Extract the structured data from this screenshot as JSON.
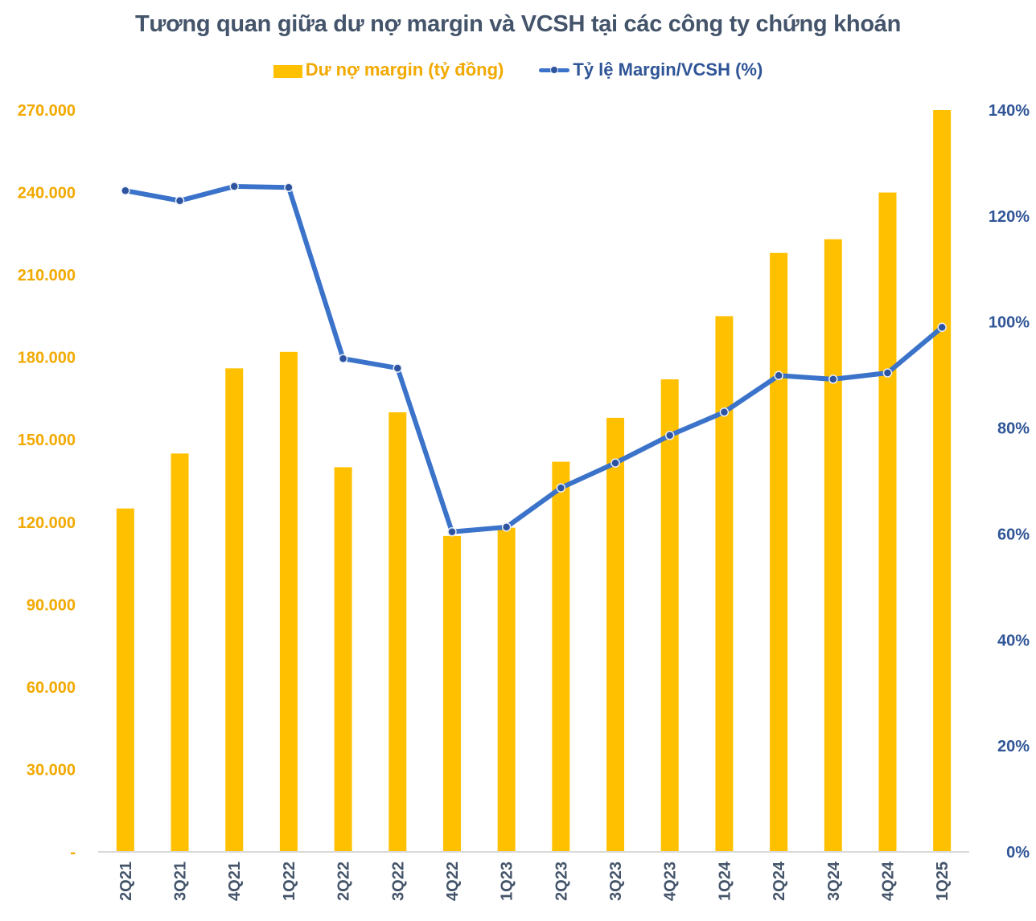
{
  "colors": {
    "bar": "#ffc000",
    "left_axis_text": "#f2a900",
    "line": "#3a73c9",
    "marker_fill": "#2e539f",
    "marker_stroke": "#e8eef8",
    "right_axis_text": "#2f5597",
    "title_text": "#44546a",
    "x_axis_text": "#44546a",
    "axis_line": "#d9d9d9"
  },
  "chart_data": {
    "type": "bar",
    "combo": "bar + line (secondary axis)",
    "title": "Tương quan giữa dư nợ margin và VCSH tại các công ty chứng khoán",
    "legend_position": "top-center",
    "grid": false,
    "categories": [
      "2Q21",
      "3Q21",
      "4Q21",
      "1Q22",
      "2Q22",
      "3Q22",
      "4Q22",
      "1Q23",
      "2Q23",
      "3Q23",
      "4Q23",
      "1Q24",
      "2Q24",
      "3Q24",
      "4Q24",
      "1Q25"
    ],
    "series": [
      {
        "name": "Dư nợ margin (tỷ đồng)",
        "type": "bar",
        "axis": "left",
        "values": [
          125000,
          145000,
          176000,
          182000,
          140000,
          160000,
          115000,
          118000,
          142000,
          158000,
          172000,
          195000,
          218000,
          223000,
          240000,
          270000
        ]
      },
      {
        "name": "Tỷ lệ Margin/VCSH (%)",
        "type": "line",
        "axis": "right",
        "values": [
          124.8,
          122.9,
          125.6,
          125.4,
          93.1,
          91.3,
          60.4,
          61.3,
          68.7,
          73.4,
          78.6,
          83.0,
          89.9,
          89.2,
          90.4,
          99.0
        ]
      }
    ],
    "left_axis": {
      "ylim": [
        0,
        270000
      ],
      "ticks": [
        0,
        30000,
        60000,
        90000,
        120000,
        150000,
        180000,
        210000,
        240000,
        270000
      ],
      "tick_labels": [
        "-",
        "30.000",
        "60.000",
        "90.000",
        "120.000",
        "150.000",
        "180.000",
        "210.000",
        "240.000",
        "270.000"
      ]
    },
    "right_axis": {
      "ylim": [
        0,
        140
      ],
      "ticks": [
        0,
        20,
        40,
        60,
        80,
        100,
        120,
        140
      ],
      "tick_labels": [
        "0%",
        "20%",
        "40%",
        "60%",
        "80%",
        "100%",
        "120%",
        "140%"
      ]
    },
    "xlabel": "",
    "ylabel": ""
  }
}
